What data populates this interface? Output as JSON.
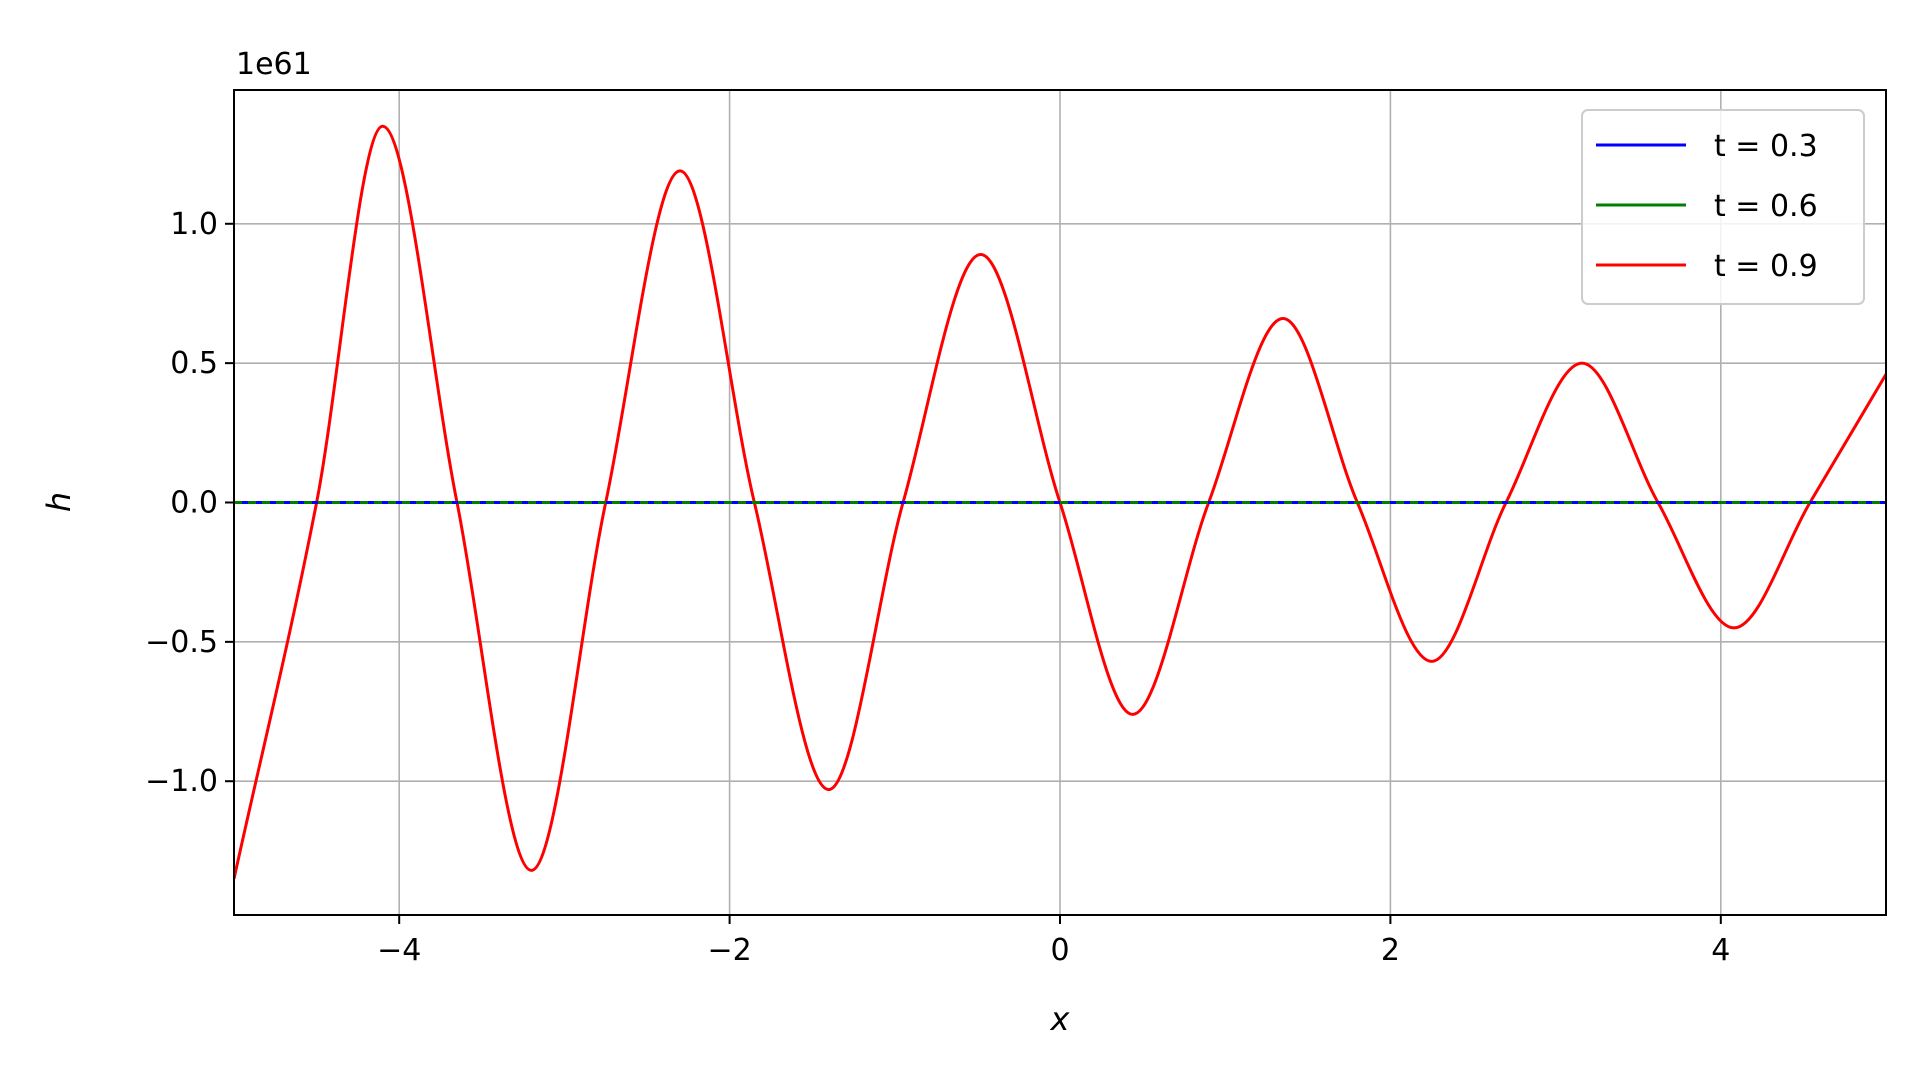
{
  "chart_data": {
    "type": "line",
    "title": "",
    "xlabel": "x",
    "ylabel": "h",
    "y_offset_label": "1e61",
    "xlim": [
      -5,
      5
    ],
    "ylim": [
      -1.48,
      1.48
    ],
    "x_ticks": [
      -4,
      -2,
      0,
      2,
      4
    ],
    "x_tick_labels": [
      "−4",
      "−2",
      "0",
      "2",
      "4"
    ],
    "y_ticks": [
      -1.0,
      -0.5,
      0.0,
      0.5,
      1.0
    ],
    "y_tick_labels": [
      "−1.0",
      "−0.5",
      "0.0",
      "0.5",
      "1.0"
    ],
    "grid": true,
    "legend_position": "top-right",
    "x": [
      -5.0,
      -4.5,
      -4.1,
      -3.65,
      -3.2,
      -2.75,
      -2.3,
      -1.85,
      -1.4,
      -0.95,
      -0.48,
      0.0,
      0.44,
      0.9,
      1.35,
      1.8,
      2.25,
      2.7,
      3.16,
      3.62,
      4.08,
      4.54,
      5.0
    ],
    "series": [
      {
        "name": "t = 0.3",
        "color": "#0000ff",
        "values": [
          0,
          0,
          0,
          0,
          0,
          0,
          0,
          0,
          0,
          0,
          0,
          0,
          0,
          0,
          0,
          0,
          0,
          0,
          0,
          0,
          0,
          0,
          0
        ]
      },
      {
        "name": "t = 0.6",
        "color": "#008000",
        "values": [
          0,
          0,
          0,
          0,
          0,
          0,
          0,
          0,
          0,
          0,
          0,
          0,
          0,
          0,
          0,
          0,
          0,
          0,
          0,
          0,
          0,
          0,
          0
        ]
      },
      {
        "name": "t = 0.9",
        "color": "#ff0000",
        "values": [
          -1.35,
          0.0,
          1.35,
          0.0,
          -1.32,
          0.0,
          1.19,
          0.0,
          -1.03,
          0.0,
          0.89,
          0.0,
          -0.76,
          0.0,
          0.66,
          0.0,
          -0.57,
          0.0,
          0.5,
          0.0,
          -0.45,
          0.0,
          0.46
        ]
      }
    ]
  }
}
